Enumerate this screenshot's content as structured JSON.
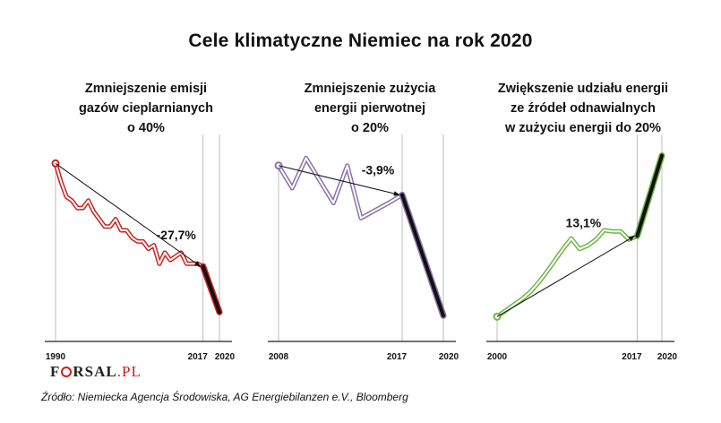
{
  "title": "Cele klimatyczne Niemiec na rok 2020",
  "logo": {
    "brand_pre": "F",
    "brand_post": "RSAL",
    "suffix": ".PL"
  },
  "source": "Źródło: Niemiecka Agencja Środowiska, AG Energiebilanzen e.V., Bloomberg",
  "colors": {
    "emissions": "#cf1f1f",
    "energy": "#8a72a8",
    "renewables": "#6bb843",
    "projection": "#111111"
  },
  "chart_data": [
    {
      "type": "line",
      "title_lines": [
        "Zmniejszenie emisji",
        "gazów cieplarnianych",
        "o 40%"
      ],
      "x": [
        1990,
        1991,
        1992,
        1993,
        1994,
        1995,
        1996,
        1997,
        1998,
        1999,
        2000,
        2001,
        2002,
        2003,
        2004,
        2005,
        2006,
        2007,
        2008,
        2009,
        2010,
        2011,
        2012,
        2013,
        2014,
        2015,
        2016,
        2017
      ],
      "values": [
        100,
        95,
        91,
        90,
        88,
        88,
        90,
        87,
        85,
        83,
        83,
        85,
        82,
        82,
        80,
        79,
        79,
        77,
        78,
        73,
        76,
        74,
        75,
        76,
        73,
        73,
        73,
        72.3
      ],
      "projection": {
        "x": [
          2017,
          2020
        ],
        "values": [
          72.3,
          60
        ]
      },
      "trend": {
        "from": [
          1990,
          100
        ],
        "to": [
          2017,
          72.3
        ]
      },
      "annotation": "-27,7%",
      "xticks": [
        1990,
        2017,
        2020
      ],
      "xlim": [
        1990,
        2020
      ],
      "ylim": [
        55,
        102
      ]
    },
    {
      "type": "line",
      "title_lines": [
        "Zmniejszenie zużycia",
        "energii pierwotnej",
        "o 20%"
      ],
      "x": [
        2008,
        2009,
        2010,
        2011,
        2012,
        2013,
        2014,
        2015,
        2016,
        2017
      ],
      "values": [
        100,
        97,
        101,
        98,
        95,
        100,
        93,
        94,
        95,
        96.1
      ],
      "projection": {
        "x": [
          2017,
          2020
        ],
        "values": [
          96.1,
          80
        ]
      },
      "trend": {
        "from": [
          2008,
          100
        ],
        "to": [
          2017,
          96.1
        ]
      },
      "annotation": "-3,9%",
      "xticks": [
        2008,
        2017,
        2020
      ],
      "xlim": [
        2008,
        2020
      ],
      "ylim": [
        78,
        102
      ]
    },
    {
      "type": "line",
      "title_lines": [
        "Zwiększenie udziału energii",
        "ze źródeł odnawialnych",
        "w zużyciu energii do 20%"
      ],
      "x": [
        2000,
        2001,
        2002,
        2003,
        2004,
        2005,
        2006,
        2007,
        2008,
        2009,
        2010,
        2011,
        2012,
        2013,
        2014,
        2015,
        2016,
        2017
      ],
      "values": [
        6.2,
        6.7,
        7.2,
        7.7,
        8.3,
        9.1,
        10.0,
        11.0,
        12.0,
        12.9,
        12.0,
        12.3,
        12.8,
        13.6,
        13.5,
        13.5,
        12.8,
        13.1
      ],
      "projection": {
        "x": [
          2017,
          2020
        ],
        "values": [
          13.1,
          20
        ]
      },
      "trend": {
        "from": [
          2000,
          6.2
        ],
        "to": [
          2017,
          13.1
        ]
      },
      "annotation": "13,1%",
      "xticks": [
        2000,
        2017,
        2020
      ],
      "xlim": [
        2000,
        2020
      ],
      "ylim": [
        5,
        20.5
      ]
    }
  ]
}
